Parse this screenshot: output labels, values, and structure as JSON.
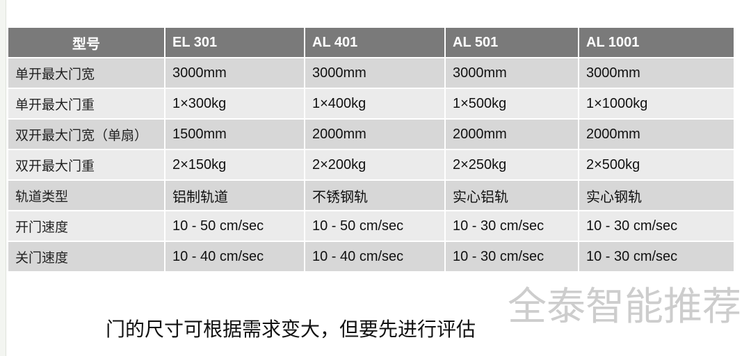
{
  "table": {
    "headers": [
      "型号",
      "EL 301",
      "AL 401",
      "AL 501",
      "AL 1001"
    ],
    "rows": [
      [
        "单开最大门宽",
        "3000mm",
        "3000mm",
        "3000mm",
        "3000mm"
      ],
      [
        "单开最大门重",
        "1×300kg",
        "1×400kg",
        "1×500kg",
        "1×1000kg"
      ],
      [
        "双开最大门宽（单扇）",
        "1500mm",
        "2000mm",
        "2000mm",
        "2000mm"
      ],
      [
        "双开最大门重",
        "2×150kg",
        "2×200kg",
        "2×250kg",
        "2×500kg"
      ],
      [
        "轨道类型",
        "铝制轨道",
        "不锈钢轨",
        "实心铝轨",
        "实心钢轨"
      ],
      [
        "开门速度",
        "10 - 50 cm/sec",
        "10 - 50 cm/sec",
        "10 - 30 cm/sec",
        "10 - 30 cm/sec"
      ],
      [
        "关门速度",
        "10 - 40 cm/sec",
        "10 - 40 cm/sec",
        "10 - 30 cm/sec",
        "10 - 30 cm/sec"
      ]
    ]
  },
  "watermark": "全泰智能推荐",
  "caption": "门的尺寸可根据需求变大，但要先进行评估",
  "colors": {
    "header": "#7a7a7a",
    "row_odd": "#d7d7d7",
    "row_even": "#ebebeb"
  }
}
